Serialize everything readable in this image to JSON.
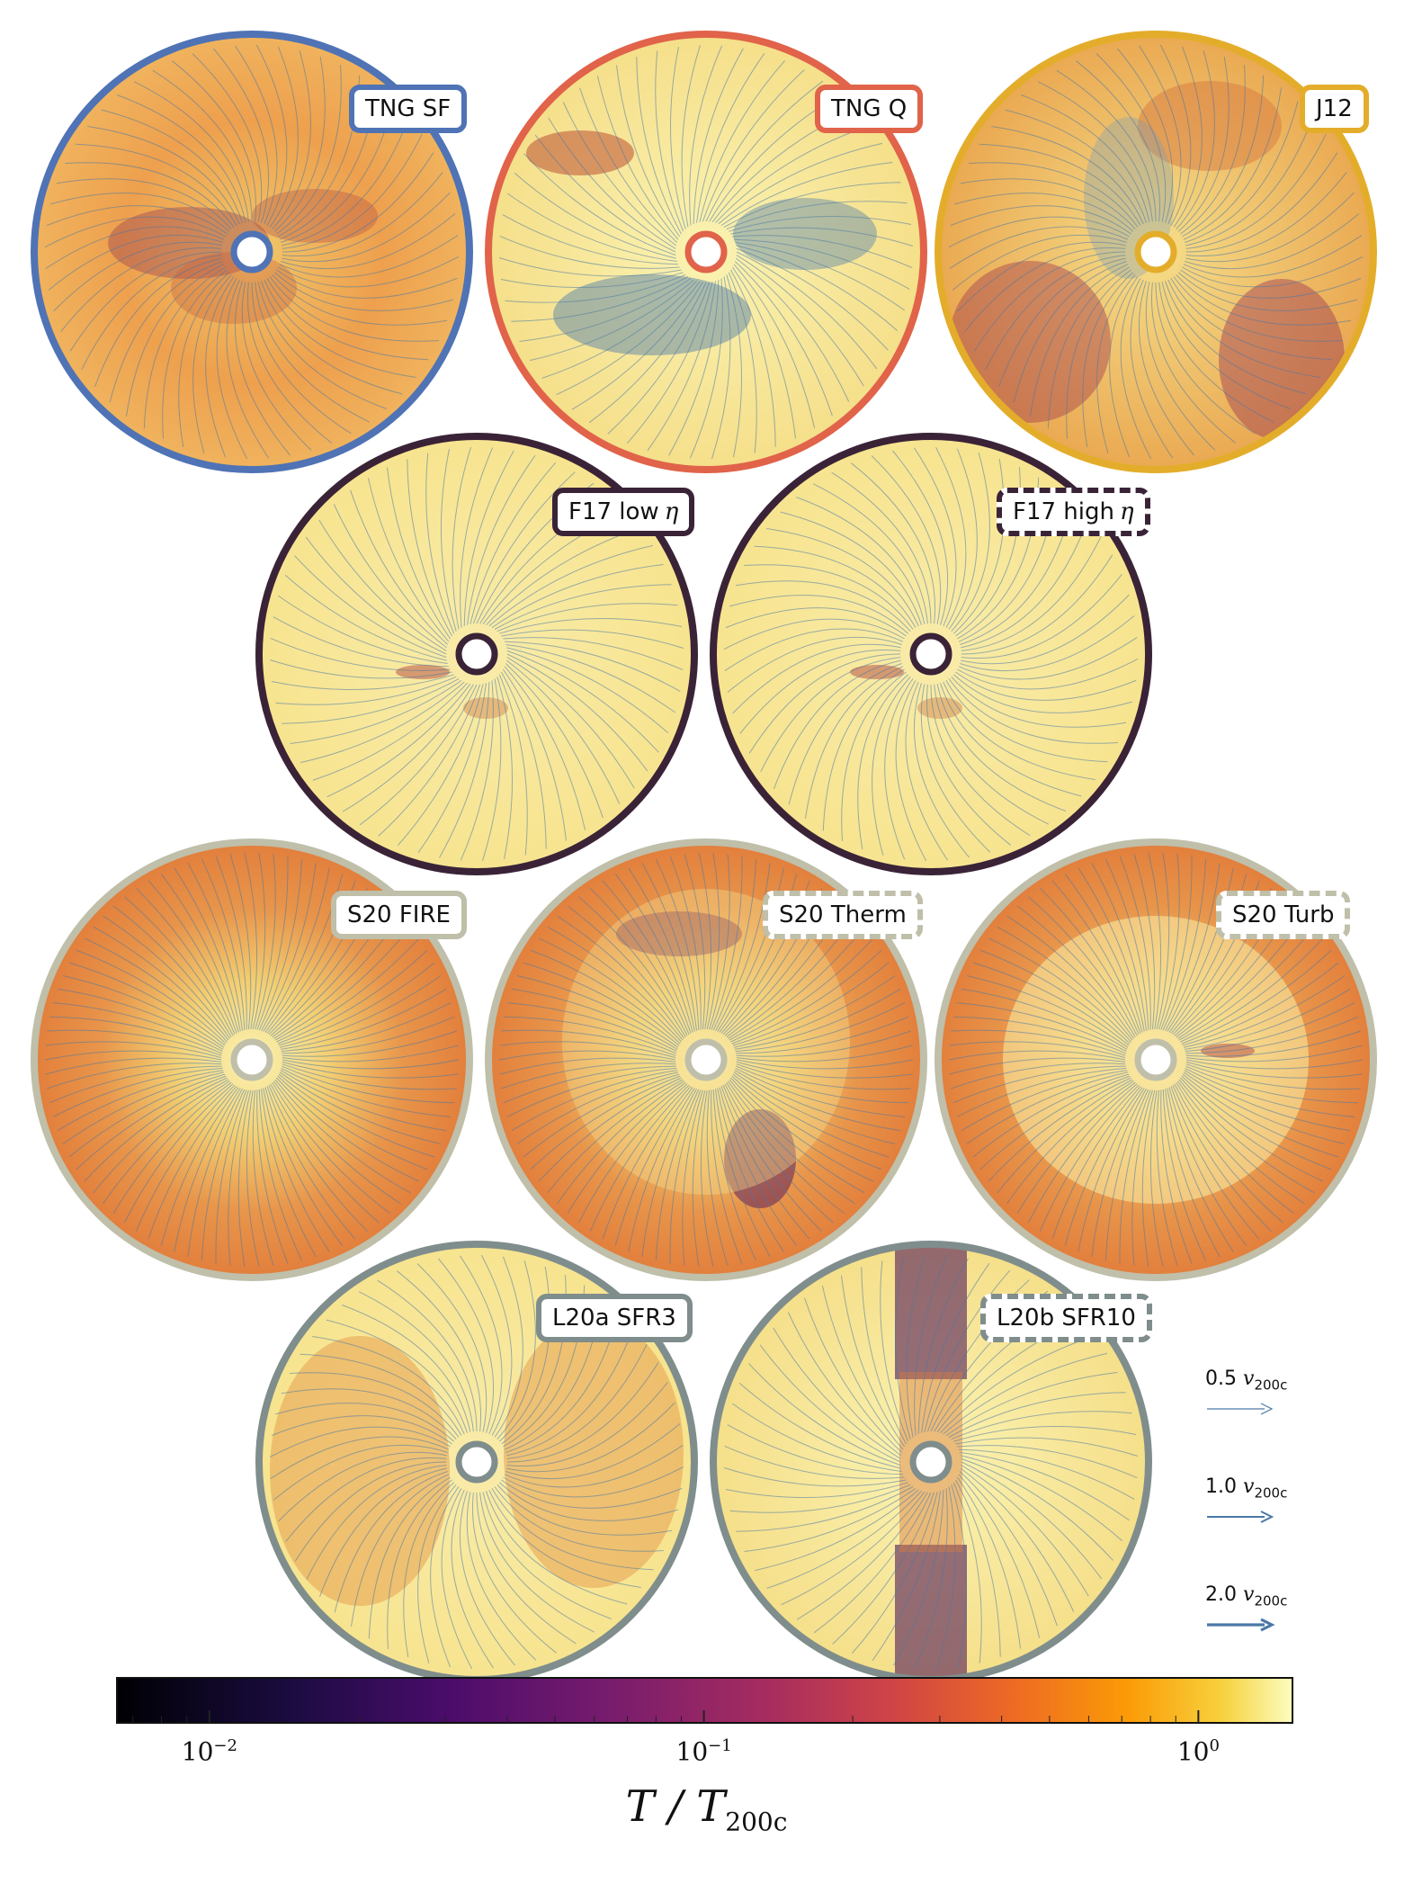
{
  "colors": {
    "tng_sf": "#4f73b5",
    "tng_q": "#e0634a",
    "j12": "#e3ad2b",
    "f17": "#3a2337",
    "s20": "#bfbfaa",
    "l20": "#7f8d8c",
    "streamline": "#4a78a6"
  },
  "panels": [
    {
      "id": "tng-sf",
      "label": "TNG SF",
      "suffix": "",
      "edge": "tng_sf",
      "dashed": false,
      "fill": "orange"
    },
    {
      "id": "tng-q",
      "label": "TNG Q",
      "suffix": "",
      "edge": "tng_q",
      "dashed": false,
      "fill": "yellow-blue"
    },
    {
      "id": "j12",
      "label": "J12",
      "suffix": "",
      "edge": "j12",
      "dashed": false,
      "fill": "mixed"
    },
    {
      "id": "f17-low",
      "label": "F17 low",
      "suffix": "η",
      "edge": "f17",
      "dashed": false,
      "fill": "pale"
    },
    {
      "id": "f17-high",
      "label": "F17 high",
      "suffix": "η",
      "edge": "f17",
      "dashed": true,
      "fill": "pale"
    },
    {
      "id": "s20-fire",
      "label": "S20 FIRE",
      "suffix": "",
      "edge": "s20",
      "dashed": false,
      "fill": "radial"
    },
    {
      "id": "s20-therm",
      "label": "S20 Therm",
      "suffix": "",
      "edge": "s20",
      "dashed": true,
      "fill": "radial"
    },
    {
      "id": "s20-turb",
      "label": "S20 Turb",
      "suffix": "",
      "edge": "s20",
      "dashed": true,
      "fill": "radial"
    },
    {
      "id": "l20a",
      "label": "L20a SFR3",
      "suffix": "",
      "edge": "l20",
      "dashed": false,
      "fill": "lobes"
    },
    {
      "id": "l20b",
      "label": "L20b SFR10",
      "suffix": "",
      "edge": "l20",
      "dashed": true,
      "fill": "jet"
    }
  ],
  "velocity_legend": [
    {
      "value": "0.5",
      "unit": "v",
      "sub": "200c",
      "width": 1.2
    },
    {
      "value": "1.0",
      "unit": "v",
      "sub": "200c",
      "width": 2.0
    },
    {
      "value": "2.0",
      "unit": "v",
      "sub": "200c",
      "width": 3.2
    }
  ],
  "colorbar": {
    "label_main": "T / T",
    "label_sub": "200c",
    "scale": "log",
    "range": [
      0.0065,
      1.55
    ],
    "ticks": [
      {
        "base": "10",
        "exp": "−2",
        "value": 0.01
      },
      {
        "base": "10",
        "exp": "−1",
        "value": 0.1
      },
      {
        "base": "10",
        "exp": "0",
        "value": 1
      }
    ],
    "colormap": "inferno"
  }
}
